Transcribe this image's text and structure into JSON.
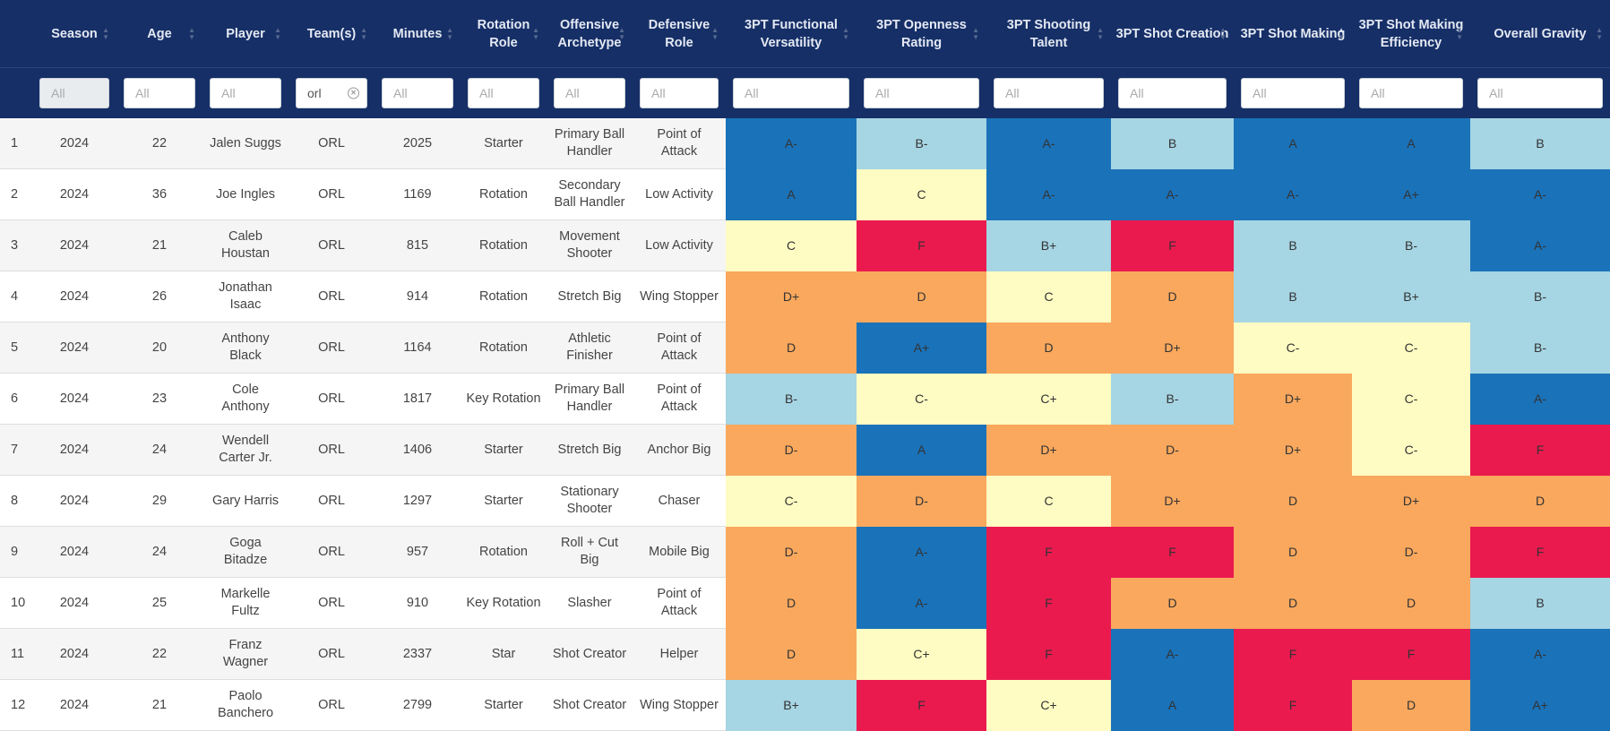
{
  "columns": [
    "Season",
    "Age",
    "Player",
    "Team(s)",
    "Minutes",
    "Rotation Role",
    "Offensive Archetype",
    "Defensive Role",
    "3PT Functional Versatility",
    "3PT Openness Rating",
    "3PT Shooting Talent",
    "3PT Shot Creation",
    "3PT Shot Making",
    "3PT Shot Making Efficiency",
    "Overall Gravity"
  ],
  "filters": {
    "placeholder": "All",
    "team_value": "orl"
  },
  "grade_colors": {
    "A+": "#1a72b9",
    "A": "#1a72b9",
    "A-": "#1a72b9",
    "B+": "#a6d5e3",
    "B": "#a6d5e3",
    "B-": "#a6d5e3",
    "C+": "#fefcc2",
    "C": "#fefcc2",
    "C-": "#fefcc2",
    "D+": "#f9a85d",
    "D": "#f9a85d",
    "D-": "#f9a85d",
    "F": "#ea1a4f"
  },
  "rows": [
    {
      "n": "1",
      "season": "2024",
      "age": "22",
      "player": "Jalen Suggs",
      "team": "ORL",
      "minutes": "2025",
      "role": "Starter",
      "off": "Primary Ball Handler",
      "def": "Point of Attack",
      "g": [
        "A-",
        "B-",
        "A-",
        "B",
        "A",
        "A",
        "B"
      ]
    },
    {
      "n": "2",
      "season": "2024",
      "age": "36",
      "player": "Joe Ingles",
      "team": "ORL",
      "minutes": "1169",
      "role": "Rotation",
      "off": "Secondary Ball Handler",
      "def": "Low Activity",
      "g": [
        "A",
        "C",
        "A-",
        "A-",
        "A-",
        "A+",
        "A-"
      ]
    },
    {
      "n": "3",
      "season": "2024",
      "age": "21",
      "player": "Caleb Houstan",
      "team": "ORL",
      "minutes": "815",
      "role": "Rotation",
      "off": "Movement Shooter",
      "def": "Low Activity",
      "g": [
        "C",
        "F",
        "B+",
        "F",
        "B",
        "B-",
        "A-"
      ]
    },
    {
      "n": "4",
      "season": "2024",
      "age": "26",
      "player": "Jonathan Isaac",
      "team": "ORL",
      "minutes": "914",
      "role": "Rotation",
      "off": "Stretch Big",
      "def": "Wing Stopper",
      "g": [
        "D+",
        "D",
        "C",
        "D",
        "B",
        "B+",
        "B-"
      ]
    },
    {
      "n": "5",
      "season": "2024",
      "age": "20",
      "player": "Anthony Black",
      "team": "ORL",
      "minutes": "1164",
      "role": "Rotation",
      "off": "Athletic Finisher",
      "def": "Point of Attack",
      "g": [
        "D",
        "A+",
        "D",
        "D+",
        "C-",
        "C-",
        "B-"
      ]
    },
    {
      "n": "6",
      "season": "2024",
      "age": "23",
      "player": "Cole Anthony",
      "team": "ORL",
      "minutes": "1817",
      "role": "Key Rotation",
      "off": "Primary Ball Handler",
      "def": "Point of Attack",
      "g": [
        "B-",
        "C-",
        "C+",
        "B-",
        "D+",
        "C-",
        "A-"
      ]
    },
    {
      "n": "7",
      "season": "2024",
      "age": "24",
      "player": "Wendell Carter Jr.",
      "team": "ORL",
      "minutes": "1406",
      "role": "Starter",
      "off": "Stretch Big",
      "def": "Anchor Big",
      "g": [
        "D-",
        "A",
        "D+",
        "D-",
        "D+",
        "C-",
        "F"
      ]
    },
    {
      "n": "8",
      "season": "2024",
      "age": "29",
      "player": "Gary Harris",
      "team": "ORL",
      "minutes": "1297",
      "role": "Starter",
      "off": "Stationary Shooter",
      "def": "Chaser",
      "g": [
        "C-",
        "D-",
        "C",
        "D+",
        "D",
        "D+",
        "D"
      ]
    },
    {
      "n": "9",
      "season": "2024",
      "age": "24",
      "player": "Goga Bitadze",
      "team": "ORL",
      "minutes": "957",
      "role": "Rotation",
      "off": "Roll + Cut Big",
      "def": "Mobile Big",
      "g": [
        "D-",
        "A-",
        "F",
        "F",
        "D",
        "D-",
        "F"
      ]
    },
    {
      "n": "10",
      "season": "2024",
      "age": "25",
      "player": "Markelle Fultz",
      "team": "ORL",
      "minutes": "910",
      "role": "Key Rotation",
      "off": "Slasher",
      "def": "Point of Attack",
      "g": [
        "D",
        "A-",
        "F",
        "D",
        "D",
        "D",
        "B"
      ]
    },
    {
      "n": "11",
      "season": "2024",
      "age": "22",
      "player": "Franz Wagner",
      "team": "ORL",
      "minutes": "2337",
      "role": "Star",
      "off": "Shot Creator",
      "def": "Helper",
      "g": [
        "D",
        "C+",
        "F",
        "A-",
        "F",
        "F",
        "A-"
      ]
    },
    {
      "n": "12",
      "season": "2024",
      "age": "21",
      "player": "Paolo Banchero",
      "team": "ORL",
      "minutes": "2799",
      "role": "Starter",
      "off": "Shot Creator",
      "def": "Wing Stopper",
      "g": [
        "B+",
        "F",
        "C+",
        "A",
        "F",
        "D",
        "A+"
      ]
    }
  ]
}
